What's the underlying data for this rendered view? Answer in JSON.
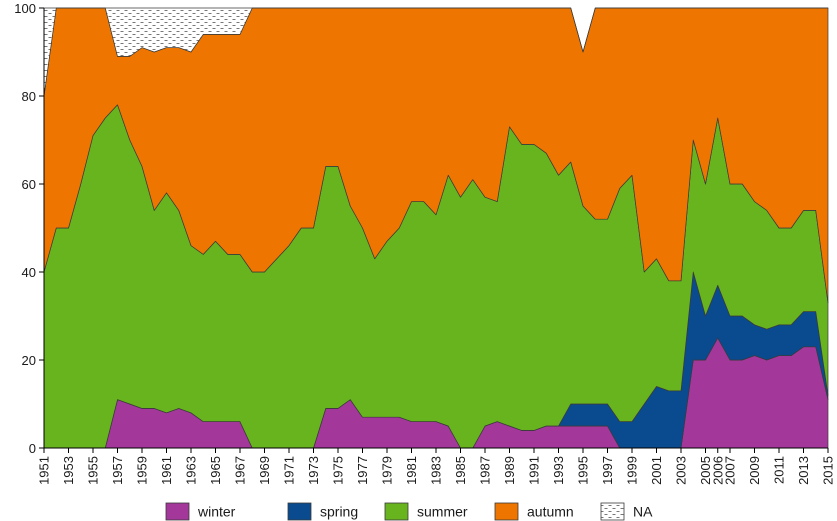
{
  "chart_data": {
    "type": "area",
    "stacked": true,
    "title": "",
    "xlabel": "",
    "ylabel": "",
    "ylim": [
      0,
      100
    ],
    "yticks": [
      0,
      20,
      40,
      60,
      80,
      100
    ],
    "xlim": [
      1951,
      2015
    ],
    "xtick_labels": [
      "1951",
      "1953",
      "1955",
      "1957",
      "1959",
      "1961",
      "1963",
      "1965",
      "1967",
      "1969",
      "1971",
      "1973",
      "1975",
      "1977",
      "1979",
      "1981",
      "1983",
      "1985",
      "1987",
      "1989",
      "1991",
      "1993",
      "1995",
      "1997",
      "1999",
      "2001",
      "2003",
      "2005",
      "2006",
      "2007",
      "2009",
      "2011",
      "2013",
      "2015"
    ],
    "grid": false,
    "legend_position": "bottom",
    "x": [
      1951,
      1952,
      1953,
      1954,
      1955,
      1956,
      1957,
      1958,
      1959,
      1960,
      1961,
      1962,
      1963,
      1964,
      1965,
      1966,
      1967,
      1968,
      1969,
      1970,
      1971,
      1972,
      1973,
      1974,
      1975,
      1976,
      1977,
      1978,
      1979,
      1980,
      1981,
      1982,
      1983,
      1984,
      1985,
      1986,
      1987,
      1988,
      1989,
      1990,
      1991,
      1992,
      1993,
      1994,
      1995,
      1996,
      1997,
      1998,
      1999,
      2000,
      2001,
      2002,
      2003,
      2004,
      2005,
      2006,
      2007,
      2008,
      2009,
      2010,
      2011,
      2012,
      2013,
      2014,
      2015
    ],
    "series": [
      {
        "name": "winter",
        "color": "#a3389a",
        "values": [
          0,
          0,
          0,
          0,
          0,
          0,
          11,
          10,
          9,
          9,
          8,
          9,
          8,
          6,
          6,
          6,
          6,
          0,
          0,
          0,
          0,
          0,
          0,
          9,
          9,
          11,
          7,
          7,
          7,
          7,
          6,
          6,
          6,
          5,
          0,
          0,
          5,
          6,
          5,
          4,
          4,
          5,
          5,
          5,
          5,
          5,
          5,
          0,
          0,
          0,
          0,
          0,
          0,
          20,
          20,
          25,
          20,
          20,
          21,
          20,
          21,
          21,
          23,
          23,
          11
        ]
      },
      {
        "name": "spring",
        "color": "#0a4a8f",
        "values": [
          0,
          0,
          0,
          0,
          0,
          0,
          0,
          0,
          0,
          0,
          0,
          0,
          0,
          0,
          0,
          0,
          0,
          0,
          0,
          0,
          0,
          0,
          0,
          0,
          0,
          0,
          0,
          0,
          0,
          0,
          0,
          0,
          0,
          0,
          0,
          0,
          0,
          0,
          0,
          0,
          0,
          0,
          0,
          5,
          5,
          5,
          5,
          6,
          6,
          10,
          14,
          13,
          13,
          20,
          10,
          12,
          10,
          10,
          7,
          7,
          7,
          7,
          8,
          8,
          1
        ]
      },
      {
        "name": "summer",
        "color": "#68b41e",
        "values": [
          40,
          50,
          50,
          60,
          71,
          75,
          67,
          60,
          55,
          45,
          50,
          45,
          38,
          38,
          41,
          38,
          38,
          40,
          40,
          43,
          46,
          50,
          50,
          55,
          55,
          44,
          43,
          36,
          40,
          43,
          50,
          50,
          47,
          57,
          57,
          61,
          52,
          50,
          68,
          65,
          65,
          62,
          57,
          55,
          45,
          42,
          42,
          53,
          56,
          30,
          29,
          25,
          25,
          30,
          30,
          38,
          30,
          30,
          28,
          27,
          22,
          22,
          23,
          23,
          21
        ]
      },
      {
        "name": "autumn",
        "color": "#ee7600",
        "values": [
          40,
          50,
          50,
          40,
          29,
          25,
          11,
          19,
          27,
          36,
          33,
          37,
          44,
          50,
          47,
          50,
          50,
          60,
          60,
          57,
          54,
          50,
          50,
          36,
          36,
          45,
          50,
          57,
          53,
          50,
          44,
          44,
          47,
          38,
          43,
          39,
          43,
          44,
          27,
          31,
          31,
          33,
          38,
          35,
          35,
          48,
          48,
          41,
          38,
          60,
          57,
          62,
          62,
          30,
          40,
          25,
          40,
          40,
          44,
          46,
          50,
          50,
          46,
          46,
          67
        ]
      },
      {
        "name": "NA",
        "color": "#ffffff",
        "pattern": "dashes",
        "values": [
          20,
          0,
          0,
          0,
          0,
          0,
          11,
          11,
          9,
          10,
          9,
          9,
          10,
          6,
          6,
          6,
          6,
          0,
          0,
          0,
          0,
          0,
          0,
          0,
          0,
          0,
          0,
          0,
          0,
          0,
          0,
          0,
          0,
          0,
          0,
          0,
          0,
          0,
          0,
          0,
          0,
          0,
          0,
          0,
          0,
          0,
          0,
          0,
          0,
          0,
          0,
          0,
          0,
          0,
          0,
          0,
          0,
          0,
          0,
          0,
          0,
          0,
          0,
          0,
          0
        ]
      }
    ]
  }
}
